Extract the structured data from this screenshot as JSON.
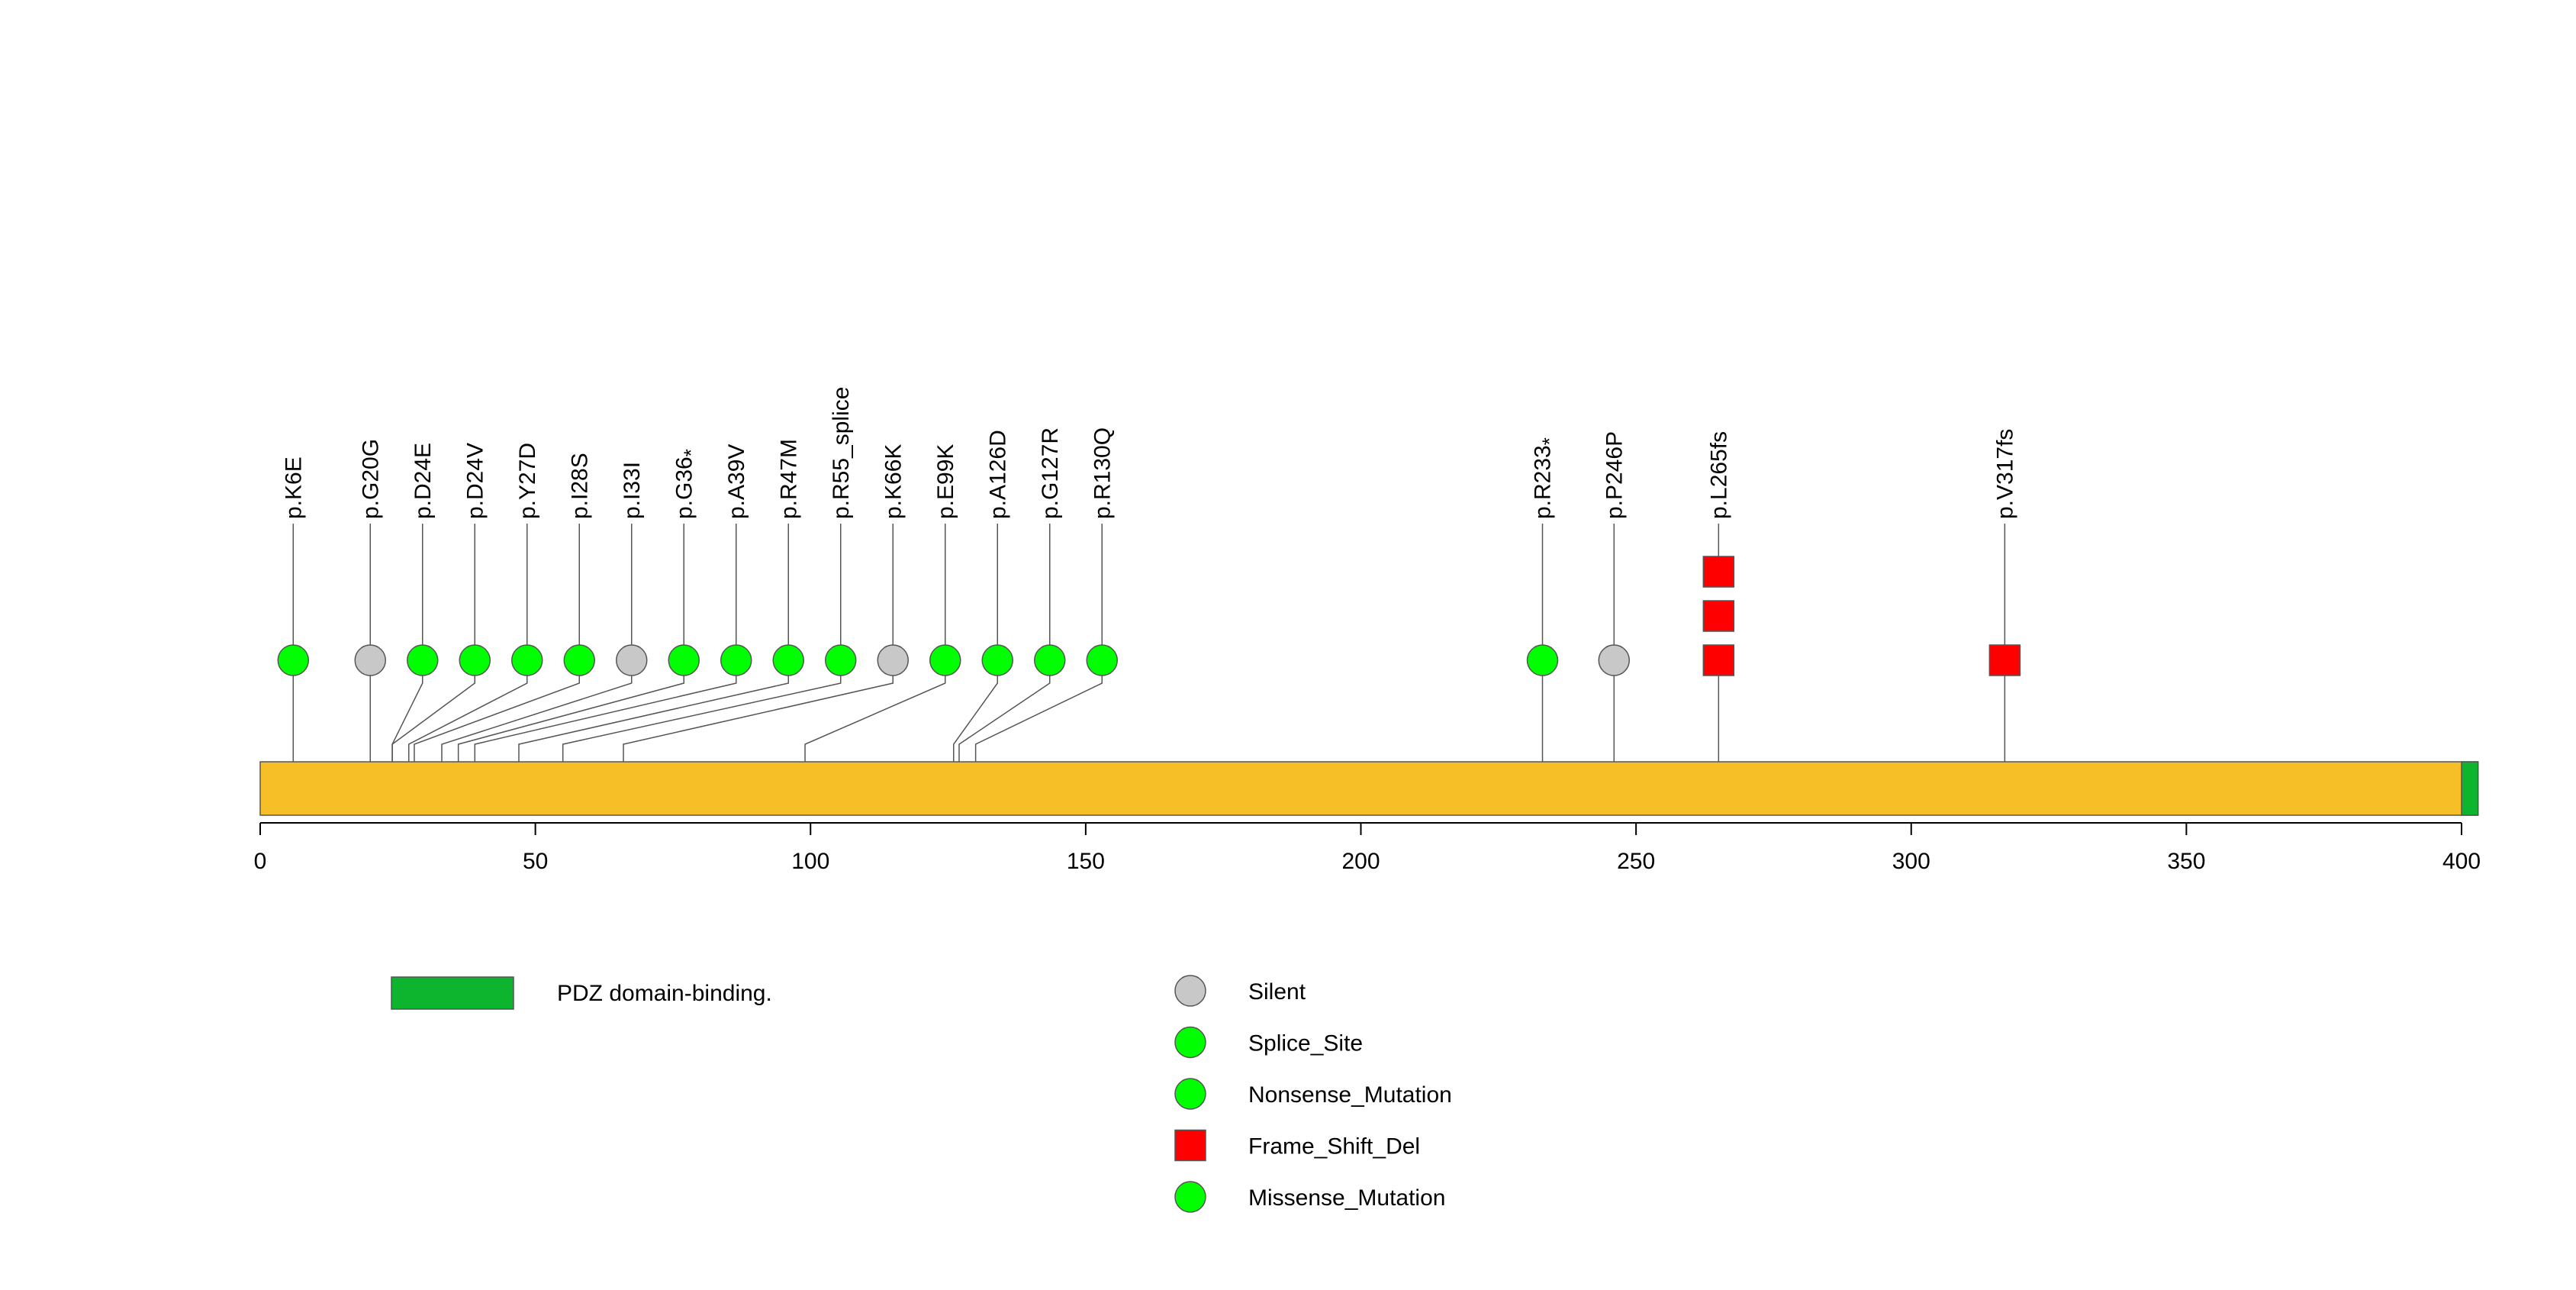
{
  "chart_data": {
    "type": "lollipop",
    "protein_length": 403,
    "axis": {
      "ticks": [
        0,
        50,
        100,
        150,
        200,
        250,
        300,
        350,
        400
      ],
      "tick_labels": [
        "0",
        "50",
        "100",
        "150",
        "200",
        "250",
        "300",
        "350",
        "400"
      ]
    },
    "protein_color": "#F7BF27",
    "domains": [
      {
        "name": "PDZ domain-binding.",
        "start": 400,
        "end": 403,
        "color": "#0CB52D"
      }
    ],
    "mutation_types": {
      "Silent": {
        "color": "#C8C8C8",
        "shape": "circle"
      },
      "Splice_Site": {
        "color": "#00FF00",
        "shape": "circle"
      },
      "Nonsense_Mutation": {
        "color": "#00FF00",
        "shape": "circle"
      },
      "Frame_Shift_Del": {
        "color": "#FF0000",
        "shape": "square"
      },
      "Missense_Mutation": {
        "color": "#00FF00",
        "shape": "circle"
      }
    },
    "mutations": [
      {
        "label": "p.K6E",
        "star": false,
        "position": 6,
        "type": "Missense_Mutation",
        "count": 1
      },
      {
        "label": "p.G20G",
        "star": false,
        "position": 20,
        "type": "Silent",
        "count": 1
      },
      {
        "label": "p.D24E",
        "star": false,
        "position": 24,
        "type": "Missense_Mutation",
        "count": 1
      },
      {
        "label": "p.D24V",
        "star": false,
        "position": 24,
        "type": "Missense_Mutation",
        "count": 1
      },
      {
        "label": "p.Y27D",
        "star": false,
        "position": 27,
        "type": "Missense_Mutation",
        "count": 1
      },
      {
        "label": "p.I28S",
        "star": false,
        "position": 28,
        "type": "Missense_Mutation",
        "count": 1
      },
      {
        "label": "p.I33I",
        "star": false,
        "position": 33,
        "type": "Silent",
        "count": 1
      },
      {
        "label": "p.G36",
        "star": true,
        "position": 36,
        "type": "Nonsense_Mutation",
        "count": 1
      },
      {
        "label": "p.A39V",
        "star": false,
        "position": 39,
        "type": "Missense_Mutation",
        "count": 1
      },
      {
        "label": "p.R47M",
        "star": false,
        "position": 47,
        "type": "Missense_Mutation",
        "count": 1
      },
      {
        "label": "p.R55_splice",
        "star": false,
        "position": 55,
        "type": "Splice_Site",
        "count": 1
      },
      {
        "label": "p.K66K",
        "star": false,
        "position": 66,
        "type": "Silent",
        "count": 1
      },
      {
        "label": "p.E99K",
        "star": false,
        "position": 99,
        "type": "Missense_Mutation",
        "count": 1
      },
      {
        "label": "p.A126D",
        "star": false,
        "position": 126,
        "type": "Missense_Mutation",
        "count": 1
      },
      {
        "label": "p.G127R",
        "star": false,
        "position": 127,
        "type": "Missense_Mutation",
        "count": 1
      },
      {
        "label": "p.R130Q",
        "star": false,
        "position": 130,
        "type": "Missense_Mutation",
        "count": 1
      },
      {
        "label": "p.R233",
        "star": true,
        "position": 233,
        "type": "Nonsense_Mutation",
        "count": 1
      },
      {
        "label": "p.P246P",
        "star": false,
        "position": 246,
        "type": "Silent",
        "count": 1
      },
      {
        "label": "p.L265fs",
        "star": false,
        "position": 265,
        "type": "Frame_Shift_Del",
        "count": 3
      },
      {
        "label": "p.V317fs",
        "star": false,
        "position": 317,
        "type": "Frame_Shift_Del",
        "count": 1
      }
    ],
    "legend": {
      "domains": [
        "PDZ domain-binding."
      ],
      "mutation_types": [
        "Silent",
        "Splice_Site",
        "Nonsense_Mutation",
        "Frame_Shift_Del",
        "Missense_Mutation"
      ]
    }
  }
}
